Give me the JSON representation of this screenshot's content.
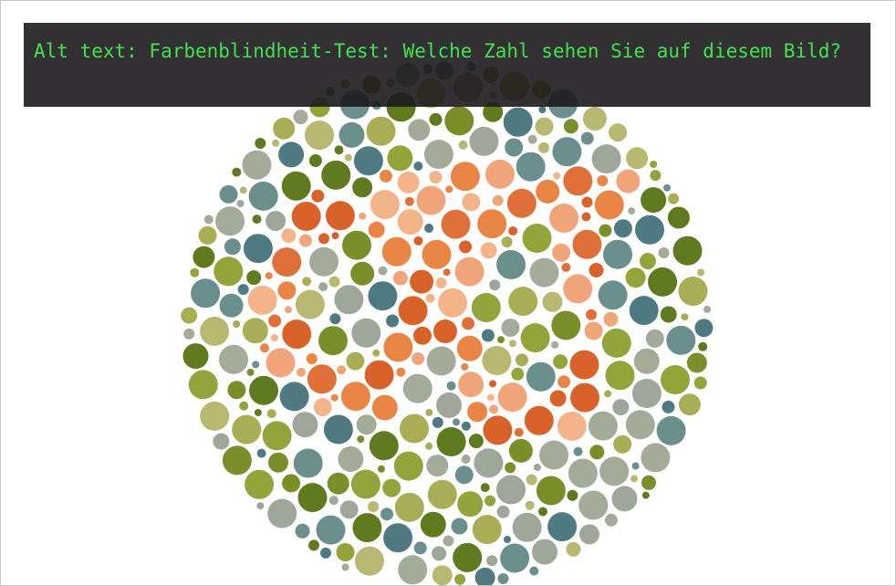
{
  "alt_overlay": {
    "text": "Alt text: Farbenblindheit-Test: Welche Zahl sehen Sie auf diesem Bild?"
  },
  "plate": {
    "type": "ishihara-color-blindness-plate",
    "palette": {
      "background_greens": [
        "#5f7a1f",
        "#7a8f2a",
        "#93a43a",
        "#a9ad55",
        "#b8b873",
        "#a4ab98",
        "#9ea79a",
        "#4f7a82",
        "#6b8f8c"
      ],
      "figure_oranges": [
        "#d8622a",
        "#e98545",
        "#f1a57a",
        "#f4b48a",
        "#e0703a"
      ]
    }
  }
}
